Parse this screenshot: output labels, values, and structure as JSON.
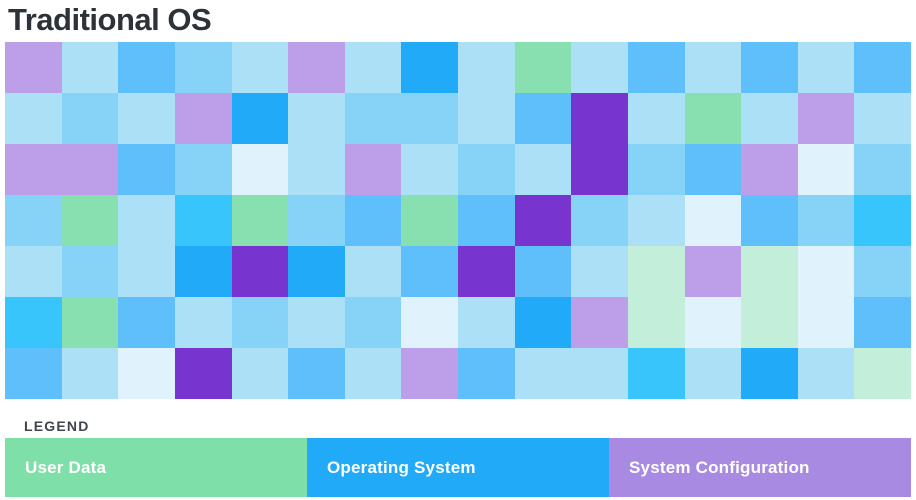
{
  "title": "Traditional OS",
  "legend": {
    "label": "LEGEND",
    "items": [
      {
        "key": "user-data",
        "label": "User Data",
        "color": "#7edfa8"
      },
      {
        "key": "operating-system",
        "label": "Operating System",
        "color": "#20aaf8"
      },
      {
        "key": "system-configuration",
        "label": "System Configuration",
        "color": "#a88ae2"
      }
    ]
  },
  "chart_data": {
    "type": "heatmap",
    "title": "Traditional OS",
    "rows": 7,
    "columns": 16,
    "legend_position": "bottom",
    "legend_entries": [
      "User Data",
      "Operating System",
      "System Configuration"
    ],
    "palette": {
      "P": "#7834cf",
      "p": "#bc9ee9",
      "G": "#88dfb0",
      "g": "#c3eed9",
      "B": "#20aaf8",
      "C": "#38c5fc",
      "M": "#5fbffa",
      "m": "#87d3f8",
      "L": "#abe0f7",
      "W": "#e0f2fb"
    },
    "palette_categories": {
      "P": "System Configuration",
      "p": "System Configuration",
      "G": "User Data",
      "g": "User Data",
      "B": "Operating System",
      "C": "Operating System",
      "M": "Operating System",
      "m": "Operating System",
      "L": "Operating System",
      "W": "Operating System"
    },
    "cells": [
      [
        "p",
        "L",
        "M",
        "m",
        "L",
        "p",
        "L",
        "B",
        "L",
        "G",
        "L",
        "M",
        "L",
        "M",
        "L",
        "M"
      ],
      [
        "L",
        "m",
        "L",
        "p",
        "B",
        "L",
        "m",
        "m",
        "L",
        "M",
        "P",
        "L",
        "G",
        "L",
        "p",
        "L"
      ],
      [
        "p",
        "p",
        "M",
        "m",
        "W",
        "L",
        "p",
        "L",
        "m",
        "L",
        "P",
        "m",
        "M",
        "p",
        "W",
        "m"
      ],
      [
        "m",
        "G",
        "L",
        "C",
        "G",
        "m",
        "M",
        "G",
        "M",
        "P",
        "m",
        "L",
        "W",
        "M",
        "m",
        "C"
      ],
      [
        "L",
        "m",
        "L",
        "B",
        "P",
        "B",
        "L",
        "M",
        "P",
        "M",
        "L",
        "g",
        "p",
        "g",
        "W",
        "m"
      ],
      [
        "C",
        "G",
        "M",
        "L",
        "m",
        "L",
        "m",
        "W",
        "L",
        "B",
        "p",
        "g",
        "W",
        "g",
        "W",
        "M"
      ],
      [
        "M",
        "L",
        "W",
        "P",
        "L",
        "M",
        "L",
        "p",
        "M",
        "L",
        "L",
        "C",
        "L",
        "B",
        "L",
        "g"
      ]
    ]
  }
}
